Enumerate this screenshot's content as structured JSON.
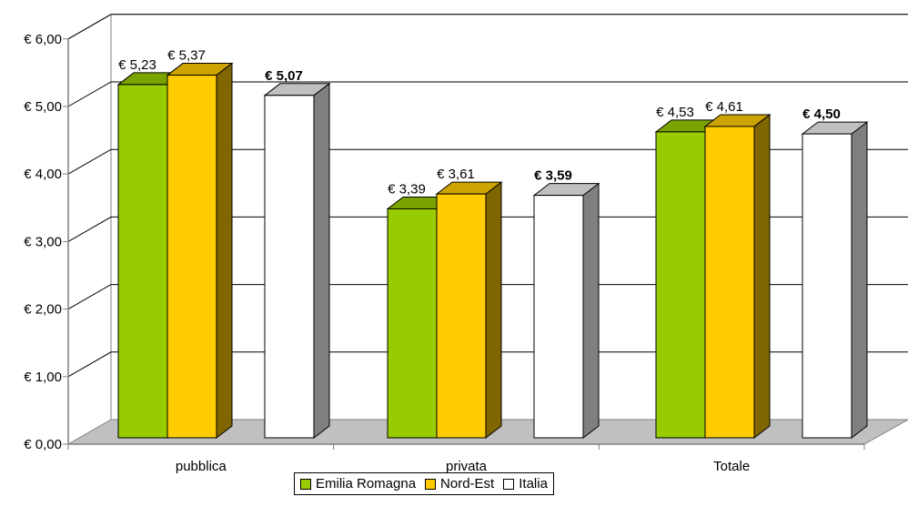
{
  "chart_data": {
    "type": "bar",
    "title": "",
    "xlabel": "",
    "ylabel": "",
    "ylim": [
      0,
      6
    ],
    "yticks": [
      0,
      1,
      2,
      3,
      4,
      5,
      6
    ],
    "ytick_labels": [
      "€ 0,00",
      "€ 1,00",
      "€ 2,00",
      "€ 3,00",
      "€ 4,00",
      "€ 5,00",
      "€ 6,00"
    ],
    "categories": [
      "pubblica",
      "privata",
      "Totale"
    ],
    "series": [
      {
        "name": "Emilia Romagna",
        "values": [
          5.23,
          3.39,
          4.53
        ],
        "labels": [
          "€ 5,23",
          "€ 3,39",
          "€ 4,53"
        ],
        "color": "#99CC00",
        "bold_labels": false
      },
      {
        "name": "Nord-Est",
        "values": [
          5.37,
          3.61,
          4.61
        ],
        "labels": [
          "€ 5,37",
          "€ 3,61",
          "€ 4,61"
        ],
        "color": "#FFCC00",
        "bold_labels": false
      },
      {
        "name": "Italia",
        "values": [
          5.07,
          3.59,
          4.5
        ],
        "labels": [
          "€ 5,07",
          "€ 3,59",
          "€ 4,50"
        ],
        "color": "#FFFFFF",
        "bold_labels": true
      }
    ],
    "grid": true,
    "style": "3d-column",
    "legend_position": "bottom"
  }
}
